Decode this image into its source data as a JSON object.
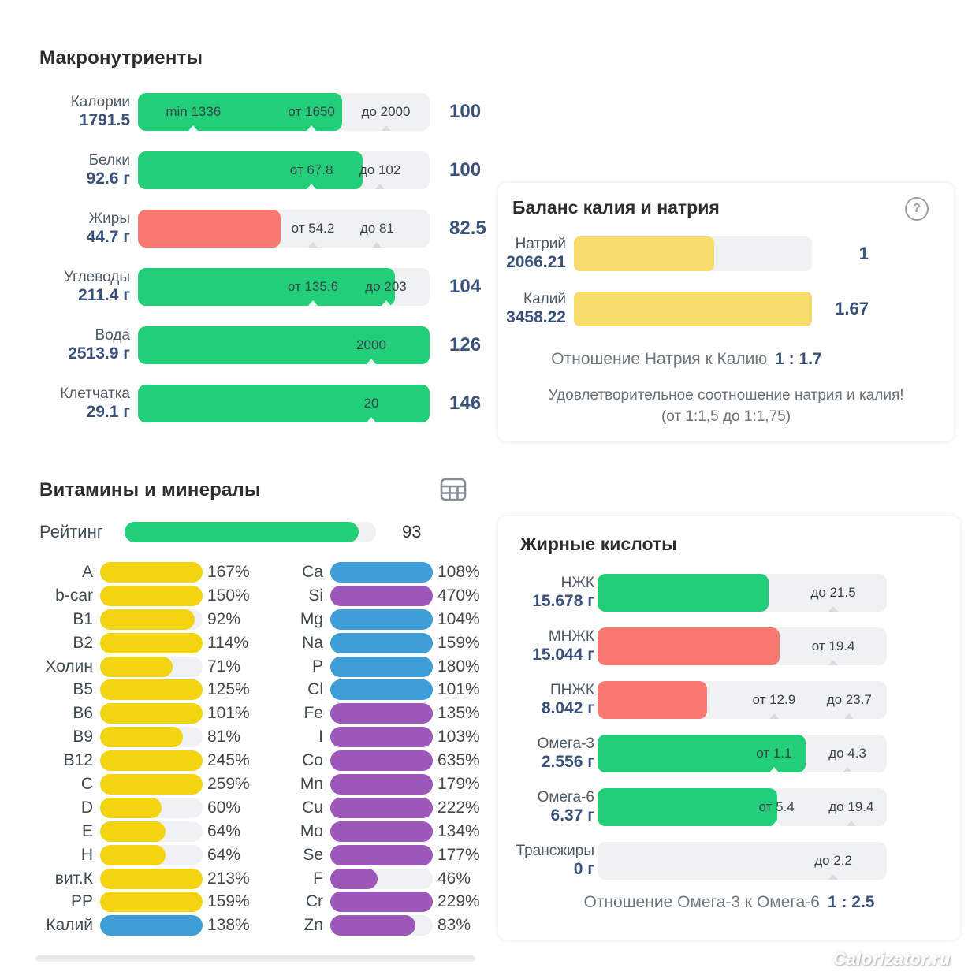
{
  "watermark": "Calorizator.ru",
  "colors": {
    "green": "#22ce78",
    "red": "#f8796f",
    "yellow": "#f2d411",
    "pale_yellow": "#f8db6d",
    "blue": "#3f9ed8",
    "purple": "#9c57b8",
    "navy": "#3a527b",
    "track_gray": "#f0f1f3",
    "caret_on_fill": "rgba(255,255,255,0.9)",
    "caret_on_track": "#d9dcdf"
  },
  "macronutrients": {
    "title": "Макронутриенты",
    "rows": [
      {
        "name": "Калории",
        "value": "1791.5",
        "percent": "100",
        "color": "green",
        "fill": 70,
        "markers": [
          {
            "label": "min 1336",
            "pos": 19
          },
          {
            "label": "от 1650",
            "pos": 59.5
          },
          {
            "label": "до 2000",
            "pos": 85
          }
        ]
      },
      {
        "name": "Белки",
        "value": "92.6 г",
        "percent": "100",
        "color": "green",
        "fill": 77,
        "markers": [
          {
            "label": "от 67.8",
            "pos": 59.5
          },
          {
            "label": "до 102",
            "pos": 83
          }
        ]
      },
      {
        "name": "Жиры",
        "value": "44.7 г",
        "percent": "82.5",
        "color": "red",
        "fill": 49,
        "markers": [
          {
            "label": "от 54.2",
            "pos": 60
          },
          {
            "label": "до 81",
            "pos": 82
          }
        ]
      },
      {
        "name": "Углеводы",
        "value": "211.4 г",
        "percent": "104",
        "color": "green",
        "fill": 88,
        "markers": [
          {
            "label": "от 135.6",
            "pos": 60
          },
          {
            "label": "до 203",
            "pos": 85
          }
        ]
      },
      {
        "name": "Вода",
        "value": "2513.9 г",
        "percent": "126",
        "color": "green",
        "fill": 100,
        "markers": [
          {
            "label": "2000",
            "pos": 80
          }
        ]
      },
      {
        "name": "Клетчатка",
        "value": "29.1 г",
        "percent": "146",
        "color": "green",
        "fill": 100,
        "markers": [
          {
            "label": "20",
            "pos": 80
          }
        ]
      }
    ]
  },
  "balance": {
    "title": "Баланс калия и натрия",
    "help_icon": "?",
    "rows": [
      {
        "name": "Натрий",
        "value": "2066.21",
        "fill": 59,
        "score": "1"
      },
      {
        "name": "Калий",
        "value": "3458.22",
        "fill": 100,
        "score": "1.67"
      }
    ],
    "ratio_label": "Отношение Натрия к Калию",
    "ratio_value": "1 : 1.7",
    "note_line1": "Удовлетворительное соотношение натрия и калия!",
    "note_line2": "(от 1:1,5 до 1:1,75)"
  },
  "vitamins": {
    "title": "Витамины и минералы",
    "table_icon": "table-grid",
    "rating_label": "Рейтинг",
    "rating_value": "93",
    "rating_fill": 93,
    "left": [
      {
        "label": "A",
        "percent": "167%",
        "fill": 100,
        "color": "yellow"
      },
      {
        "label": "b-car",
        "percent": "150%",
        "fill": 100,
        "color": "yellow"
      },
      {
        "label": "B1",
        "percent": "92%",
        "fill": 92,
        "color": "yellow"
      },
      {
        "label": "B2",
        "percent": "114%",
        "fill": 100,
        "color": "yellow"
      },
      {
        "label": "Холин",
        "percent": "71%",
        "fill": 71,
        "color": "yellow"
      },
      {
        "label": "B5",
        "percent": "125%",
        "fill": 100,
        "color": "yellow"
      },
      {
        "label": "B6",
        "percent": "101%",
        "fill": 100,
        "color": "yellow"
      },
      {
        "label": "B9",
        "percent": "81%",
        "fill": 81,
        "color": "yellow"
      },
      {
        "label": "B12",
        "percent": "245%",
        "fill": 100,
        "color": "yellow"
      },
      {
        "label": "C",
        "percent": "259%",
        "fill": 100,
        "color": "yellow"
      },
      {
        "label": "D",
        "percent": "60%",
        "fill": 60,
        "color": "yellow"
      },
      {
        "label": "E",
        "percent": "64%",
        "fill": 64,
        "color": "yellow"
      },
      {
        "label": "H",
        "percent": "64%",
        "fill": 64,
        "color": "yellow"
      },
      {
        "label": "вит.К",
        "percent": "213%",
        "fill": 100,
        "color": "yellow"
      },
      {
        "label": "PP",
        "percent": "159%",
        "fill": 100,
        "color": "yellow"
      },
      {
        "label": "Калий",
        "percent": "138%",
        "fill": 100,
        "color": "blue"
      }
    ],
    "right": [
      {
        "label": "Ca",
        "percent": "108%",
        "fill": 100,
        "color": "blue"
      },
      {
        "label": "Si",
        "percent": "470%",
        "fill": 100,
        "color": "purple"
      },
      {
        "label": "Mg",
        "percent": "104%",
        "fill": 100,
        "color": "blue"
      },
      {
        "label": "Na",
        "percent": "159%",
        "fill": 100,
        "color": "blue"
      },
      {
        "label": "P",
        "percent": "180%",
        "fill": 100,
        "color": "blue"
      },
      {
        "label": "Cl",
        "percent": "101%",
        "fill": 100,
        "color": "blue"
      },
      {
        "label": "Fe",
        "percent": "135%",
        "fill": 100,
        "color": "purple"
      },
      {
        "label": "I",
        "percent": "103%",
        "fill": 100,
        "color": "purple"
      },
      {
        "label": "Co",
        "percent": "635%",
        "fill": 100,
        "color": "purple"
      },
      {
        "label": "Mn",
        "percent": "179%",
        "fill": 100,
        "color": "purple"
      },
      {
        "label": "Cu",
        "percent": "222%",
        "fill": 100,
        "color": "purple"
      },
      {
        "label": "Mo",
        "percent": "134%",
        "fill": 100,
        "color": "purple"
      },
      {
        "label": "Se",
        "percent": "177%",
        "fill": 100,
        "color": "purple"
      },
      {
        "label": "F",
        "percent": "46%",
        "fill": 46,
        "color": "purple"
      },
      {
        "label": "Cr",
        "percent": "229%",
        "fill": 100,
        "color": "purple"
      },
      {
        "label": "Zn",
        "percent": "83%",
        "fill": 83,
        "color": "purple"
      }
    ]
  },
  "fatty_acids": {
    "title": "Жирные кислоты",
    "rows": [
      {
        "name": "НЖК",
        "value": "15.678 г",
        "color": "green",
        "fill": 59,
        "markers": [
          {
            "label": "до 21.5",
            "pos": 81.5
          }
        ]
      },
      {
        "name": "МНЖК",
        "value": "15.044 г",
        "color": "red",
        "fill": 63,
        "markers": [
          {
            "label": "от 19.4",
            "pos": 81.5
          }
        ]
      },
      {
        "name": "ПНЖК",
        "value": "8.042 г",
        "color": "red",
        "fill": 38,
        "markers": [
          {
            "label": "от 12.9",
            "pos": 61
          },
          {
            "label": "до 23.7",
            "pos": 87
          }
        ]
      },
      {
        "name": "Омега-3",
        "value": "2.556 г",
        "color": "green",
        "fill": 72,
        "markers": [
          {
            "label": "от 1.1",
            "pos": 61
          },
          {
            "label": "до 4.3",
            "pos": 86.4
          }
        ]
      },
      {
        "name": "Омега-6",
        "value": "6.37 г",
        "color": "green",
        "fill": 62,
        "markers": [
          {
            "label": "от 5.4",
            "pos": 61.9
          },
          {
            "label": "до 19.4",
            "pos": 87.7
          }
        ]
      },
      {
        "name": "Трансжиры",
        "value": "0 г",
        "color": "none",
        "fill": 0,
        "markers": [
          {
            "label": "до 2.2",
            "pos": 81.5
          }
        ]
      }
    ],
    "ratio_label": "Отношение Омега-3 к Омега-6",
    "ratio_value": "1 : 2.5"
  }
}
